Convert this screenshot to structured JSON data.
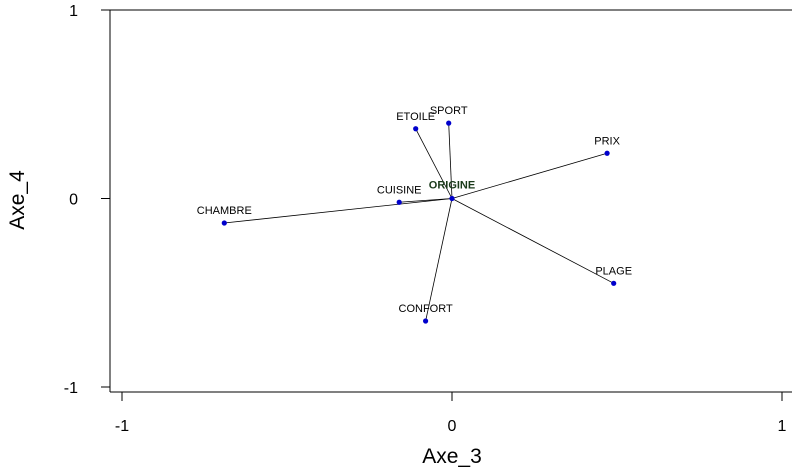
{
  "chart_data": {
    "type": "scatter",
    "xlabel": "Axe_3",
    "ylabel": "Axe_4",
    "xlim": [
      -1,
      1
    ],
    "ylim": [
      -1,
      1
    ],
    "xticks": [
      "-1",
      "0",
      "1"
    ],
    "yticks": [
      "1",
      "0",
      "-1"
    ],
    "grid": false,
    "point_color": "#0000cc",
    "line_color": "#000000",
    "origin": {
      "label": "ORIGINE",
      "x": 0.0,
      "y": 0.0
    },
    "points": [
      {
        "label": "ETOILE",
        "x": -0.11,
        "y": 0.37
      },
      {
        "label": "SPORT",
        "x": -0.01,
        "y": 0.4
      },
      {
        "label": "PRIX",
        "x": 0.47,
        "y": 0.24
      },
      {
        "label": "CUISINE",
        "x": -0.16,
        "y": -0.02
      },
      {
        "label": "CHAMBRE",
        "x": -0.69,
        "y": -0.13
      },
      {
        "label": "PLAGE",
        "x": 0.49,
        "y": -0.45
      },
      {
        "label": "CONFORT",
        "x": -0.08,
        "y": -0.65
      }
    ]
  }
}
